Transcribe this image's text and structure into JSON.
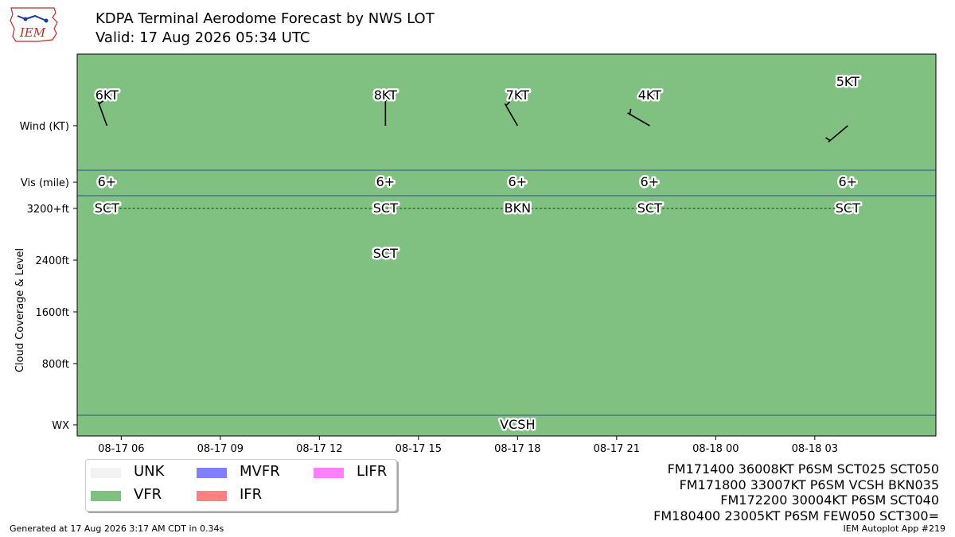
{
  "header": {
    "logo_text": "IEM",
    "title": "KDPA Terminal Aerodome Forecast by NWS LOT",
    "subtitle": "Valid: 17 Aug 2026 05:34 UTC"
  },
  "colors": {
    "UNK": "#f2f2f2",
    "VFR": "#80c080",
    "MVFR": "#8080ff",
    "IFR": "#ff8080",
    "LIFR": "#ff80ff",
    "panel_lines": "#2e4e8e",
    "cloud_line": "#2e7d32"
  },
  "chart_data": {
    "type": "line",
    "title": "KDPA Terminal Aerodome Forecast by NWS LOT",
    "subtitle": "Valid: 17 Aug 2026 05:34 UTC",
    "ylabel": "Cloud Coverage & Level",
    "x_axis": {
      "type": "datetime",
      "range": [
        "2026-08-17 04:40",
        "2026-08-18 06:40"
      ],
      "ticks": [
        "08-17 06",
        "08-17 09",
        "08-17 12",
        "08-17 15",
        "08-17 18",
        "08-17 21",
        "08-18 00",
        "08-18 03"
      ],
      "tick_hours": [
        6,
        9,
        12,
        15,
        18,
        21,
        24,
        27
      ]
    },
    "row_labels": {
      "wind": "Wind (KT)",
      "vis": "Vis (mile)",
      "wx": "WX"
    },
    "cloud_axis": {
      "ticks": [
        "3200+ft",
        "2400ft",
        "1600ft",
        "800ft"
      ],
      "tick_values": [
        3200,
        2400,
        1600,
        800
      ],
      "ylim": [
        0,
        3200
      ]
    },
    "flight_category": [
      {
        "start": "2026-08-17 04:40",
        "end": "2026-08-18 06:40",
        "category": "VFR"
      }
    ],
    "forecast_times": [
      "08-17 05:34",
      "08-17 14:00",
      "08-17 18:00",
      "08-17 22:00",
      "08-18 04:00"
    ],
    "forecast_hours": [
      5.567,
      14,
      18,
      22,
      28
    ],
    "wind": [
      {
        "label": "6KT",
        "direction_deg": 340,
        "speed_kt": 6
      },
      {
        "label": "8KT",
        "direction_deg": 360,
        "speed_kt": 8
      },
      {
        "label": "7KT",
        "direction_deg": 330,
        "speed_kt": 7
      },
      {
        "label": "4KT",
        "direction_deg": 300,
        "speed_kt": 4
      },
      {
        "label": "5KT",
        "direction_deg": 230,
        "speed_kt": 5
      }
    ],
    "visibility": [
      "6+",
      "6+",
      "6+",
      "6+",
      "6+"
    ],
    "clouds": [
      {
        "hour": 5.567,
        "label": "SCT",
        "level": 3200
      },
      {
        "hour": 14,
        "label": "SCT",
        "level": 3200
      },
      {
        "hour": 14,
        "label": "SCT",
        "level": 2500
      },
      {
        "hour": 18,
        "label": "BKN",
        "level": 3200
      },
      {
        "hour": 22,
        "label": "SCT",
        "level": 3200
      },
      {
        "hour": 28,
        "label": "SCT",
        "level": 3200
      }
    ],
    "cloud_trend_line": {
      "level": 3200,
      "from_hour": 5.567,
      "to_hour": 28
    },
    "weather": [
      {
        "hour": 18,
        "label": "VCSH"
      }
    ],
    "legend": {
      "placement": "bottom-left",
      "items": [
        {
          "label": "UNK",
          "color_key": "UNK"
        },
        {
          "label": "VFR",
          "color_key": "VFR"
        },
        {
          "label": "MVFR",
          "color_key": "MVFR"
        },
        {
          "label": "IFR",
          "color_key": "IFR"
        },
        {
          "label": "LIFR",
          "color_key": "LIFR"
        }
      ]
    }
  },
  "taf_lines": [
    "FM171400 36008KT P6SM SCT025 SCT050",
    "FM171800 33007KT P6SM VCSH BKN035",
    "FM172200 30004KT P6SM SCT040",
    "FM180400 23005KT P6SM FEW050 SCT300="
  ],
  "footer": {
    "generated": "Generated at 17 Aug 2026 3:17 AM CDT in 0.34s",
    "app": "IEM Autoplot App #219"
  }
}
